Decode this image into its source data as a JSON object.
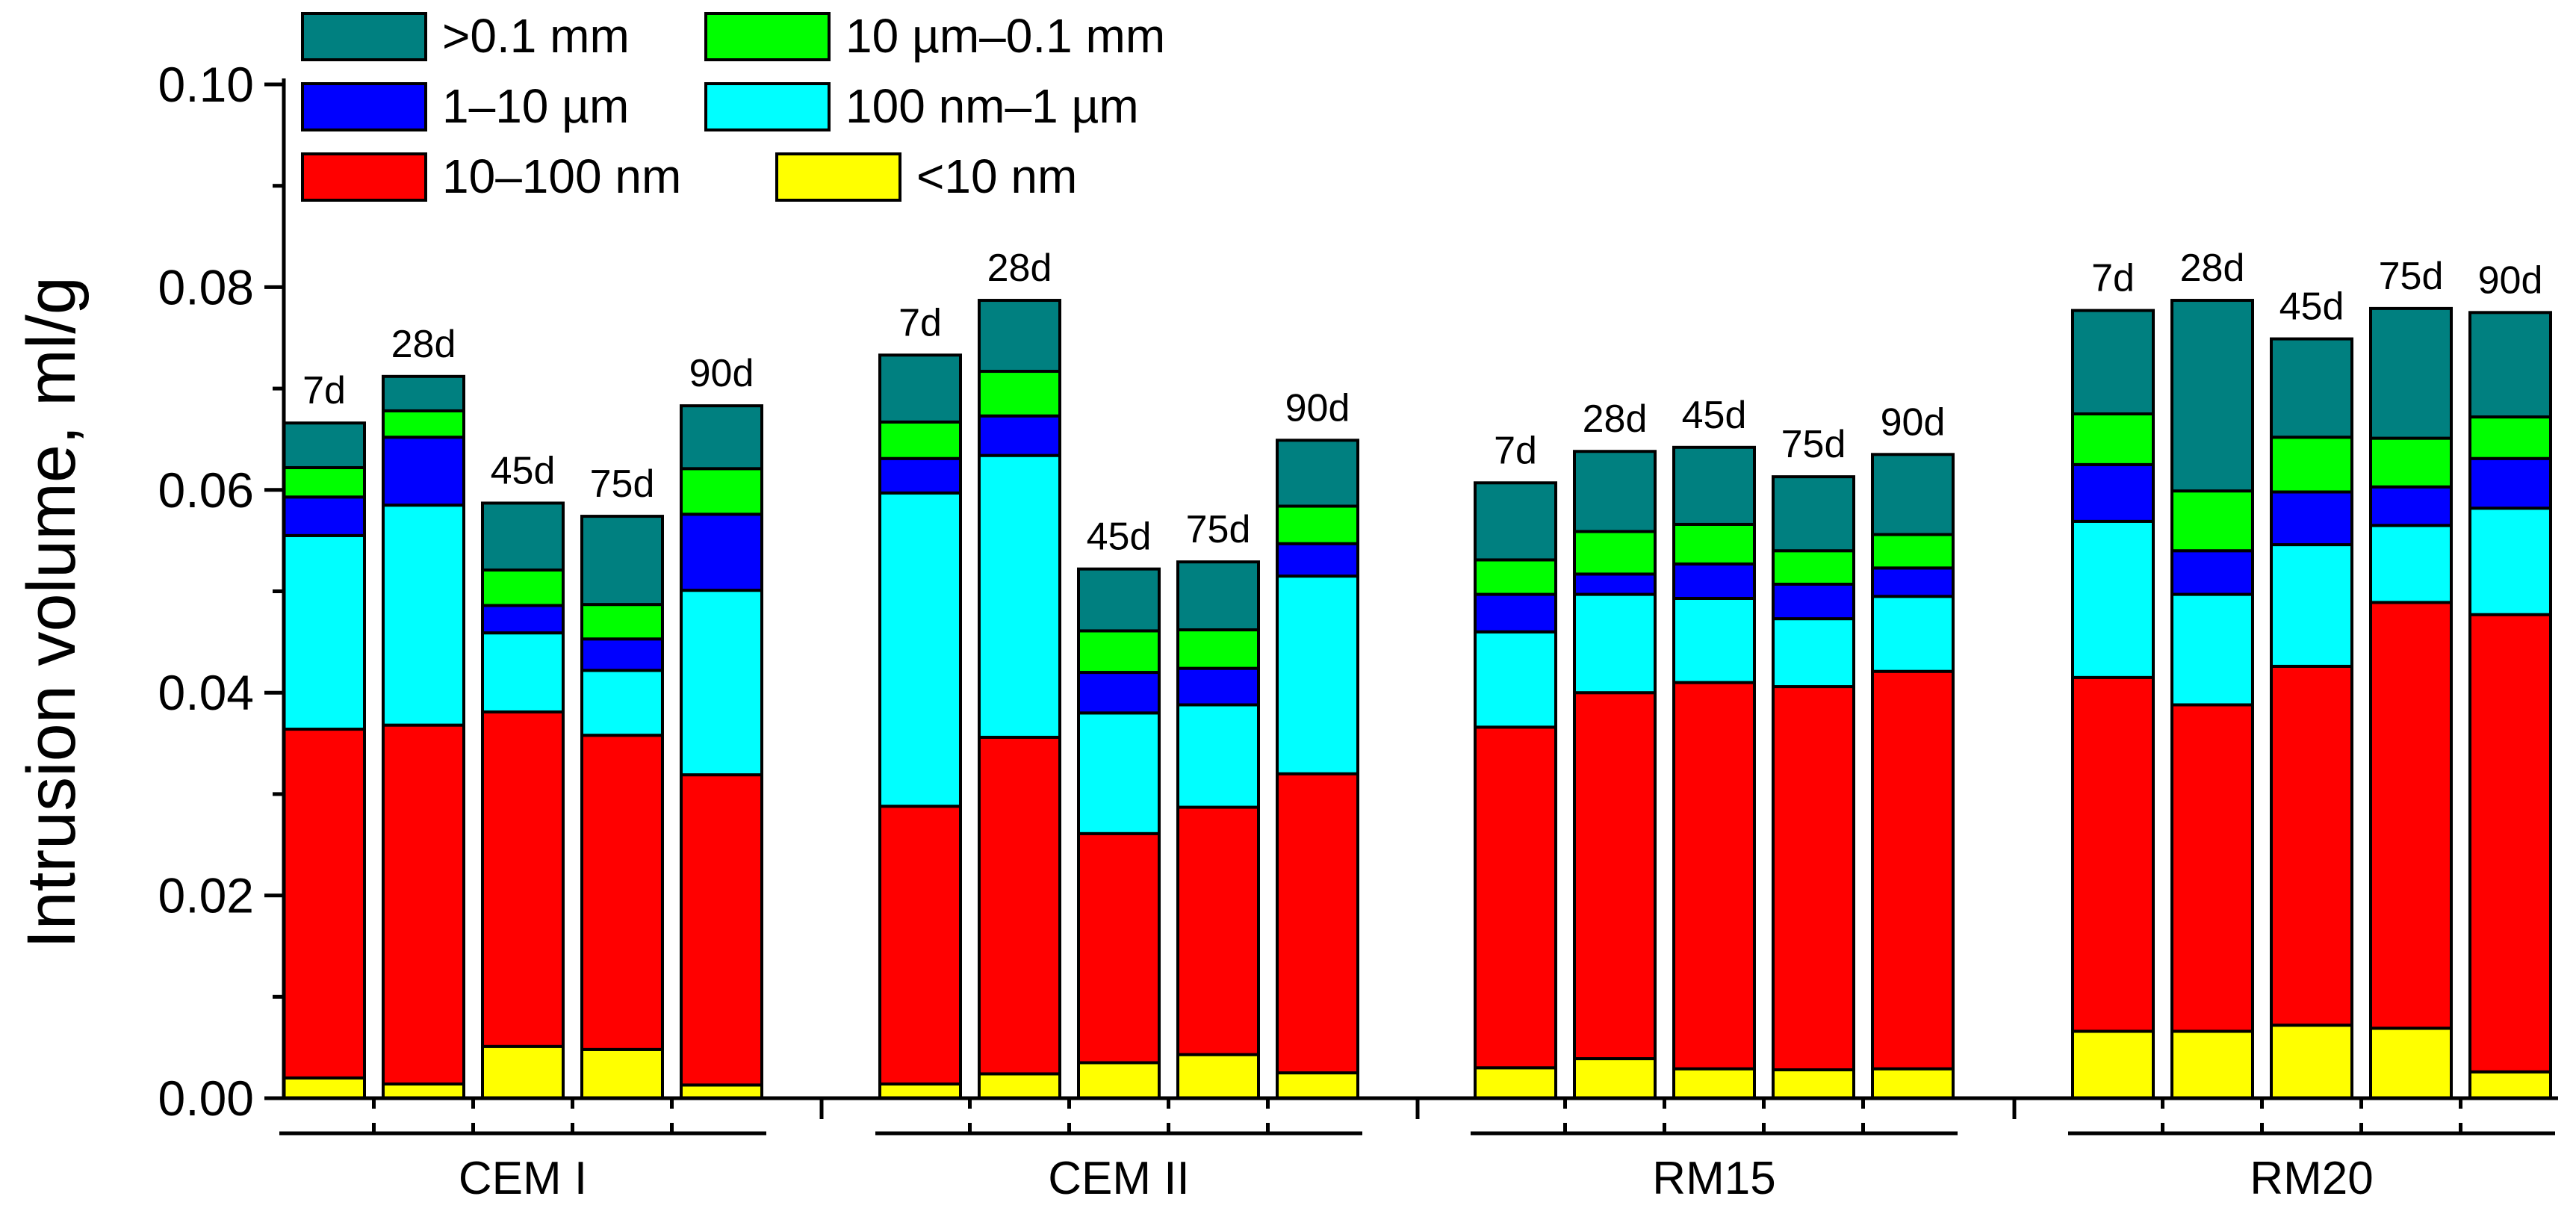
{
  "chart_data": {
    "type": "bar",
    "stacked": true,
    "title": "",
    "xlabel": "",
    "ylabel": "Intrusion volume, ml/g",
    "ylim": [
      0,
      0.1
    ],
    "yticks": [
      "0.00",
      "0.02",
      "0.04",
      "0.06",
      "0.08",
      "0.10"
    ],
    "groups": [
      "CEM I",
      "CEM II",
      "RM15",
      "RM20"
    ],
    "ages": [
      "7d",
      "28d",
      "45d",
      "75d",
      "90d"
    ],
    "legend": {
      "placement": "top-left",
      "columns": 2
    },
    "series": [
      {
        "name": "<10 nm",
        "color": "#FFFF00",
        "values": [
          0.002,
          0.0014,
          0.0051,
          0.0048,
          0.0013,
          0.0014,
          0.0024,
          0.0035,
          0.0043,
          0.0025,
          0.003,
          0.0039,
          0.0029,
          0.0028,
          0.0029,
          0.0066,
          0.0066,
          0.0072,
          0.0069,
          0.0026
        ]
      },
      {
        "name": "10–100 nm",
        "color": "#FF0000",
        "values": [
          0.0344,
          0.0354,
          0.033,
          0.031,
          0.0306,
          0.0274,
          0.0332,
          0.0226,
          0.0244,
          0.0295,
          0.0336,
          0.0361,
          0.0381,
          0.0378,
          0.0392,
          0.0349,
          0.0322,
          0.0354,
          0.042,
          0.0451
        ]
      },
      {
        "name": "100 nm–1 µm",
        "color": "#00FFFF",
        "values": [
          0.0191,
          0.0217,
          0.0078,
          0.0064,
          0.0182,
          0.0309,
          0.0278,
          0.0119,
          0.0101,
          0.0195,
          0.0094,
          0.0097,
          0.0083,
          0.0067,
          0.0074,
          0.0154,
          0.0109,
          0.012,
          0.0076,
          0.0105
        ]
      },
      {
        "name": "1–10 µm",
        "color": "#0000FF",
        "values": [
          0.0038,
          0.0067,
          0.0027,
          0.0031,
          0.0075,
          0.0034,
          0.0039,
          0.004,
          0.0036,
          0.0032,
          0.0037,
          0.002,
          0.0034,
          0.0034,
          0.0028,
          0.0056,
          0.0043,
          0.0052,
          0.0038,
          0.0049
        ]
      },
      {
        "name": "10 µm–0.1 mm",
        "color": "#00FF00",
        "values": [
          0.0029,
          0.0026,
          0.0035,
          0.0034,
          0.0045,
          0.0036,
          0.0044,
          0.0041,
          0.0038,
          0.0037,
          0.0034,
          0.0042,
          0.0039,
          0.0033,
          0.0033,
          0.005,
          0.0059,
          0.0054,
          0.0048,
          0.0041
        ]
      },
      {
        "name": ">0.1 mm",
        "color": "#008080",
        "values": [
          0.0044,
          0.0034,
          0.0066,
          0.0087,
          0.0062,
          0.0066,
          0.007,
          0.0061,
          0.0067,
          0.0065,
          0.0076,
          0.0079,
          0.0076,
          0.0073,
          0.0079,
          0.0102,
          0.0188,
          0.0097,
          0.0128,
          0.0103
        ]
      }
    ]
  }
}
